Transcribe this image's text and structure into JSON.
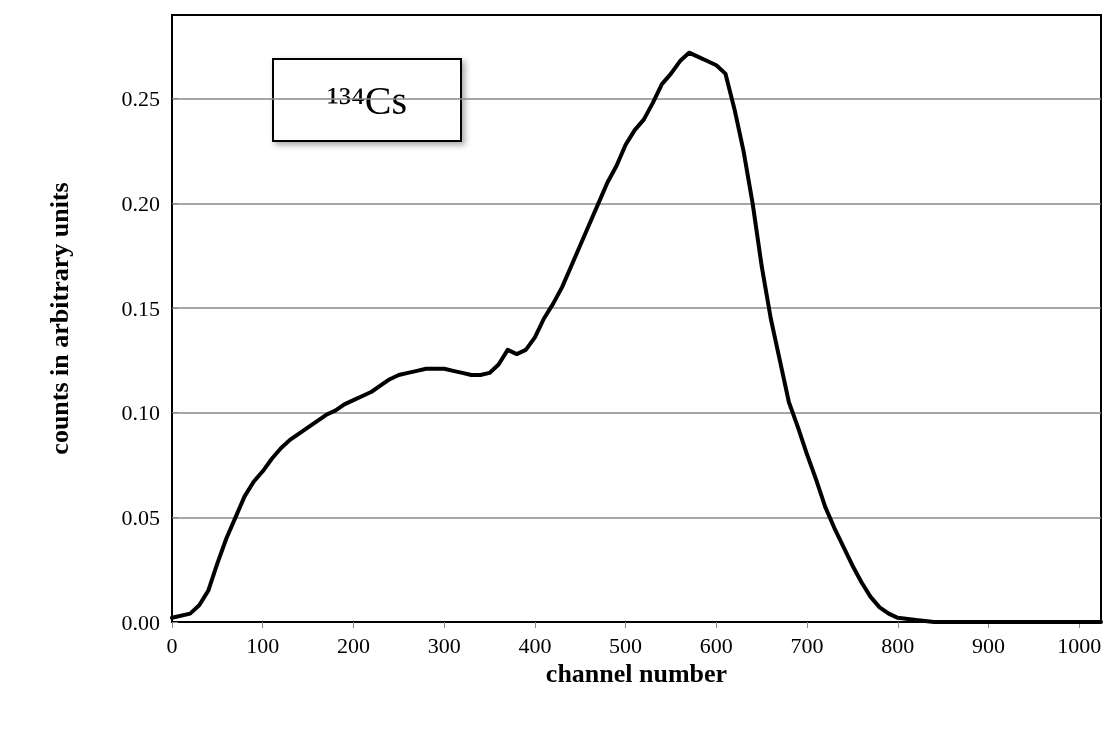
{
  "chart_data": {
    "type": "line",
    "xlabel": "channel number",
    "ylabel": "counts in arbitrary units",
    "annotations": [
      "¹³⁴Cs"
    ],
    "xlim": [
      0,
      1024
    ],
    "xticks": [
      0,
      100,
      200,
      300,
      400,
      500,
      600,
      700,
      800,
      900,
      1000
    ],
    "ylim": [
      0,
      0.29
    ],
    "yticks": [
      {
        "value": 0,
        "label": "0.00"
      },
      {
        "value": 0.05,
        "label": "0.05"
      },
      {
        "value": 0.1,
        "label": "0.10"
      },
      {
        "value": 0.15,
        "label": "0.15"
      },
      {
        "value": 0.2,
        "label": "0.20"
      },
      {
        "value": 0.25,
        "label": "0.25"
      }
    ],
    "grid": "y",
    "marker": "none",
    "line_style": "solid",
    "series": [
      {
        "color": "#000000",
        "x": [
          0,
          20,
          30,
          40,
          50,
          60,
          70,
          80,
          90,
          100,
          110,
          120,
          130,
          140,
          150,
          160,
          170,
          180,
          190,
          200,
          210,
          220,
          230,
          240,
          250,
          260,
          270,
          280,
          290,
          300,
          310,
          320,
          330,
          340,
          350,
          360,
          370,
          380,
          390,
          400,
          410,
          420,
          430,
          440,
          450,
          460,
          470,
          480,
          490,
          500,
          510,
          520,
          530,
          540,
          550,
          560,
          570,
          580,
          590,
          600,
          610,
          620,
          630,
          640,
          650,
          660,
          670,
          680,
          690,
          700,
          710,
          720,
          730,
          740,
          750,
          760,
          770,
          780,
          790,
          800,
          820,
          840,
          900,
          1024
        ],
        "values": [
          0.002,
          0.004,
          0.008,
          0.015,
          0.028,
          0.04,
          0.05,
          0.06,
          0.067,
          0.072,
          0.078,
          0.083,
          0.087,
          0.09,
          0.093,
          0.096,
          0.099,
          0.101,
          0.104,
          0.106,
          0.108,
          0.11,
          0.113,
          0.116,
          0.118,
          0.119,
          0.12,
          0.121,
          0.121,
          0.121,
          0.12,
          0.119,
          0.118,
          0.118,
          0.119,
          0.123,
          0.13,
          0.128,
          0.13,
          0.136,
          0.145,
          0.152,
          0.16,
          0.17,
          0.18,
          0.19,
          0.2,
          0.21,
          0.218,
          0.228,
          0.235,
          0.24,
          0.248,
          0.257,
          0.262,
          0.268,
          0.272,
          0.27,
          0.268,
          0.266,
          0.262,
          0.245,
          0.225,
          0.2,
          0.17,
          0.145,
          0.125,
          0.105,
          0.093,
          0.08,
          0.068,
          0.055,
          0.045,
          0.036,
          0.027,
          0.019,
          0.012,
          0.007,
          0.004,
          0.002,
          0.001,
          0,
          0,
          0
        ]
      }
    ]
  }
}
